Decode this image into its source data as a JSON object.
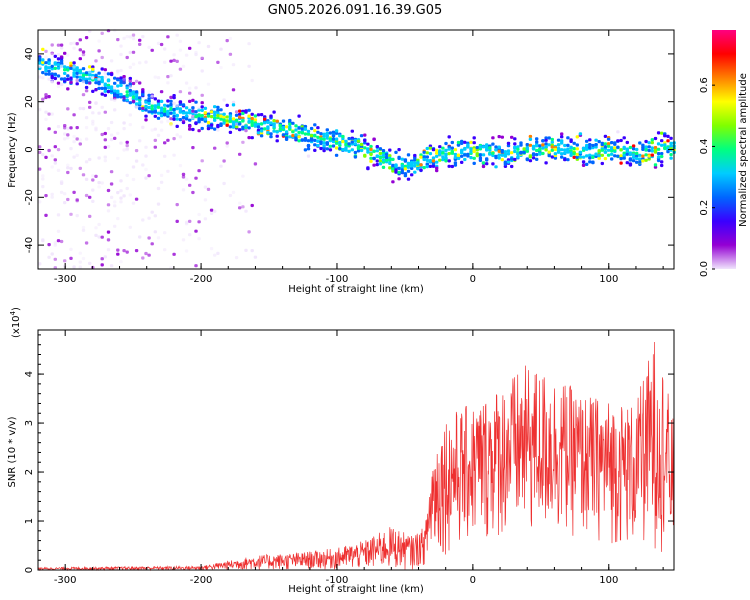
{
  "title": "GN05.2026.091.16.39.G05",
  "chart_data": [
    {
      "type": "heatmap",
      "name": "spectrogram",
      "xlabel": "Height of straight line (km)",
      "ylabel": "Frequency (Hz)",
      "xlim": [
        -320,
        148
      ],
      "ylim": [
        -50,
        50
      ],
      "xticks": [
        -300,
        -200,
        -100,
        0,
        100
      ],
      "yticks": [
        -40,
        -20,
        0,
        20,
        40
      ],
      "xtick_labels": [
        "-300",
        "-200",
        "-100",
        "0",
        "100"
      ],
      "ytick_labels": [
        "-40",
        "-20",
        "0",
        "20",
        "40"
      ],
      "ridge": {
        "x": [
          -320,
          -290,
          -260,
          -240,
          -200,
          -160,
          -120,
          -100,
          -80,
          -60,
          -50,
          -30,
          0,
          20,
          50,
          80,
          100,
          120,
          148
        ],
        "frequency": [
          35,
          32,
          25,
          18,
          14,
          11,
          6,
          3,
          0,
          -5,
          -7,
          -3,
          0,
          -2,
          1,
          -1,
          0,
          -2,
          2
        ]
      },
      "colorbar": {
        "label": "Normalized spectral amplitude",
        "range": [
          0.0,
          0.78
        ],
        "ticks": [
          0.0,
          0.2,
          0.4,
          0.6
        ],
        "tick_labels": [
          "0.0",
          "0.2",
          "0.4",
          "0.6"
        ],
        "colors": [
          "#f0e4fc",
          "#9400d3",
          "#3a00ff",
          "#0066ff",
          "#00ccff",
          "#00ff80",
          "#80ff00",
          "#ffff00",
          "#ff8000",
          "#ff0000",
          "#ff0080"
        ]
      }
    },
    {
      "type": "line",
      "name": "snr",
      "xlabel": "Height of straight line (km)",
      "ylabel": "SNR (10 * v/v)",
      "scale_label": "(x10",
      "scale_exp": "4",
      "scale_close": ")",
      "xlim": [
        -320,
        148
      ],
      "ylim": [
        0,
        4.9
      ],
      "xticks": [
        -300,
        -200,
        -100,
        0,
        100
      ],
      "yticks": [
        0,
        1,
        2,
        3,
        4
      ],
      "xtick_labels": [
        "-300",
        "-200",
        "-100",
        "0",
        "100"
      ],
      "ytick_labels": [
        "0",
        "1",
        "2",
        "3",
        "4"
      ],
      "color": "#ee3030",
      "envelope": {
        "x": [
          -320,
          -200,
          -160,
          -130,
          -100,
          -80,
          -60,
          -45,
          -40,
          -35,
          -30,
          -20,
          0,
          20,
          40,
          60,
          80,
          100,
          120,
          135,
          148
        ],
        "upper": [
          0.05,
          0.08,
          0.3,
          0.35,
          0.45,
          0.6,
          0.9,
          0.7,
          0.8,
          0.9,
          2.5,
          3.2,
          3.4,
          3.8,
          4.2,
          4.0,
          3.6,
          3.5,
          3.4,
          4.9,
          3.0
        ],
        "lower": [
          0.0,
          0.0,
          0.0,
          0.0,
          0.0,
          0.0,
          0.0,
          0.0,
          0.05,
          0.1,
          0.2,
          0.3,
          0.5,
          0.6,
          0.6,
          0.7,
          0.6,
          0.5,
          0.4,
          0.4,
          0.3
        ]
      }
    }
  ]
}
